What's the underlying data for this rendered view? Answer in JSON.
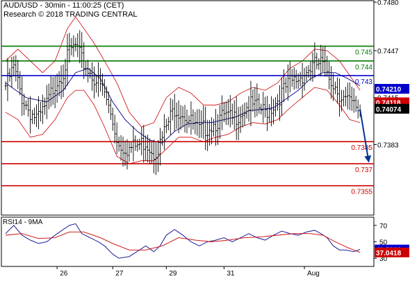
{
  "header": {
    "title": "AUD/USD - 30min - 11:00:25 (CET)",
    "subtitle": "Research © 2018 TRADING CENTRAL"
  },
  "chart_data": [
    {
      "type": "candlestick",
      "title": "AUD/USD - 30min - 11:00:25 (CET)",
      "ylim": [
        0.7335,
        0.7481
      ],
      "y_ticks": [
        0.748,
        0.7447,
        0.7415,
        0.7383
      ],
      "x_tick_labels": [
        "26",
        "27",
        "29",
        "31",
        "Aug"
      ],
      "grid": false,
      "approx_price_path": [
        [
          0,
          0.7423
        ],
        [
          4,
          0.7435
        ],
        [
          8,
          0.7415
        ],
        [
          12,
          0.7405
        ],
        [
          16,
          0.74
        ],
        [
          20,
          0.741
        ],
        [
          24,
          0.7425
        ],
        [
          28,
          0.7433
        ],
        [
          31,
          0.7446
        ],
        [
          34,
          0.745
        ],
        [
          37,
          0.744
        ],
        [
          41,
          0.7432
        ],
        [
          45,
          0.7425
        ],
        [
          48,
          0.7418
        ],
        [
          52,
          0.7398
        ],
        [
          55,
          0.7383
        ],
        [
          60,
          0.738
        ],
        [
          65,
          0.7383
        ],
        [
          68,
          0.7385
        ],
        [
          72,
          0.7378
        ],
        [
          75,
          0.7383
        ],
        [
          78,
          0.7395
        ],
        [
          82,
          0.7408
        ],
        [
          86,
          0.7405
        ],
        [
          90,
          0.7398
        ],
        [
          94,
          0.7392
        ],
        [
          98,
          0.7395
        ],
        [
          102,
          0.7398
        ],
        [
          106,
          0.7402
        ],
        [
          110,
          0.74
        ],
        [
          114,
          0.7405
        ],
        [
          118,
          0.741
        ],
        [
          122,
          0.7408
        ],
        [
          126,
          0.7405
        ],
        [
          130,
          0.741
        ],
        [
          134,
          0.7418
        ],
        [
          138,
          0.7425
        ],
        [
          142,
          0.7428
        ],
        [
          146,
          0.7433
        ],
        [
          150,
          0.7437
        ],
        [
          153,
          0.7438
        ],
        [
          156,
          0.7433
        ],
        [
          159,
          0.7425
        ],
        [
          162,
          0.7418
        ],
        [
          165,
          0.7413
        ],
        [
          169,
          0.7409
        ],
        [
          172,
          0.7407
        ]
      ],
      "bollinger_bands": {
        "upper": [
          [
            0,
            0.744
          ],
          [
            6,
            0.7448
          ],
          [
            12,
            0.744
          ],
          [
            18,
            0.7432
          ],
          [
            24,
            0.744
          ],
          [
            30,
            0.7462
          ],
          [
            34,
            0.747
          ],
          [
            38,
            0.7462
          ],
          [
            43,
            0.7452
          ],
          [
            48,
            0.744
          ],
          [
            54,
            0.7425
          ],
          [
            60,
            0.7405
          ],
          [
            66,
            0.7395
          ],
          [
            72,
            0.7398
          ],
          [
            78,
            0.7415
          ],
          [
            84,
            0.7422
          ],
          [
            90,
            0.7418
          ],
          [
            96,
            0.741
          ],
          [
            102,
            0.741
          ],
          [
            108,
            0.7412
          ],
          [
            114,
            0.7418
          ],
          [
            120,
            0.7422
          ],
          [
            126,
            0.742
          ],
          [
            132,
            0.7425
          ],
          [
            138,
            0.7435
          ],
          [
            144,
            0.744
          ],
          [
            150,
            0.7448
          ],
          [
            156,
            0.7447
          ],
          [
            162,
            0.744
          ],
          [
            167,
            0.743
          ],
          [
            172,
            0.742
          ]
        ],
        "lower": [
          [
            0,
            0.7405
          ],
          [
            6,
            0.74
          ],
          [
            12,
            0.7388
          ],
          [
            18,
            0.739
          ],
          [
            24,
            0.74
          ],
          [
            30,
            0.7415
          ],
          [
            34,
            0.742
          ],
          [
            38,
            0.742
          ],
          [
            43,
            0.741
          ],
          [
            48,
            0.7395
          ],
          [
            54,
            0.7375
          ],
          [
            60,
            0.737
          ],
          [
            66,
            0.7372
          ],
          [
            72,
            0.7372
          ],
          [
            78,
            0.738
          ],
          [
            84,
            0.7388
          ],
          [
            90,
            0.7388
          ],
          [
            96,
            0.7385
          ],
          [
            102,
            0.7388
          ],
          [
            108,
            0.739
          ],
          [
            114,
            0.7395
          ],
          [
            120,
            0.7398
          ],
          [
            126,
            0.7397
          ],
          [
            132,
            0.74
          ],
          [
            138,
            0.7408
          ],
          [
            144,
            0.7415
          ],
          [
            150,
            0.7422
          ],
          [
            156,
            0.742
          ],
          [
            162,
            0.741
          ],
          [
            167,
            0.74
          ],
          [
            172,
            0.7398
          ]
        ]
      },
      "moving_average": [
        [
          0,
          0.7425
        ],
        [
          10,
          0.7415
        ],
        [
          20,
          0.7412
        ],
        [
          28,
          0.742
        ],
        [
          34,
          0.7432
        ],
        [
          40,
          0.7435
        ],
        [
          46,
          0.7428
        ],
        [
          52,
          0.7412
        ],
        [
          58,
          0.74
        ],
        [
          64,
          0.7392
        ],
        [
          70,
          0.7386
        ],
        [
          76,
          0.7384
        ],
        [
          82,
          0.7392
        ],
        [
          88,
          0.7397
        ],
        [
          94,
          0.7398
        ],
        [
          100,
          0.7398
        ],
        [
          106,
          0.74
        ],
        [
          112,
          0.7402
        ],
        [
          118,
          0.7406
        ],
        [
          124,
          0.7407
        ],
        [
          130,
          0.7408
        ],
        [
          136,
          0.7414
        ],
        [
          142,
          0.742
        ],
        [
          148,
          0.7428
        ],
        [
          154,
          0.7432
        ],
        [
          160,
          0.7432
        ],
        [
          166,
          0.7428
        ],
        [
          172,
          0.7423
        ]
      ],
      "horizontal_levels": [
        {
          "value": 0.745,
          "label": "0.745",
          "color": "#007700"
        },
        {
          "value": 0.744,
          "label": "0.744",
          "color": "#007700"
        },
        {
          "value": 0.743,
          "label": "0.743",
          "color": "#0000cc"
        },
        {
          "value": 0.7385,
          "label": "0.7385",
          "color": "#cc0000"
        },
        {
          "value": 0.737,
          "label": "0.737",
          "color": "#cc0000"
        },
        {
          "value": 0.7355,
          "label": "0.7355",
          "color": "#cc0000"
        }
      ],
      "price_badges": [
        {
          "value": 0.7421,
          "label": "0.74210",
          "color": "#0000cc"
        },
        {
          "value": 0.74118,
          "label": "0.74118",
          "color": "#cc0000"
        },
        {
          "value": 0.74074,
          "label": "0.74074",
          "color": "#000000"
        }
      ],
      "forecast_arrow": {
        "from": [
          172,
          0.7407
        ],
        "to": [
          176,
          0.7373
        ],
        "color": "#003399"
      }
    },
    {
      "type": "line",
      "title": "RSI14 - 9MA",
      "ylim": [
        20,
        80
      ],
      "y_ticks": [
        70,
        50,
        30
      ],
      "series": [
        {
          "color": "#000088",
          "values": [
            [
              0,
              60
            ],
            [
              4,
              70
            ],
            [
              8,
              58
            ],
            [
              12,
              52
            ],
            [
              16,
              48
            ],
            [
              20,
              50
            ],
            [
              24,
              58
            ],
            [
              28,
              65
            ],
            [
              31,
              70
            ],
            [
              34,
              72
            ],
            [
              37,
              60
            ],
            [
              41,
              55
            ],
            [
              45,
              50
            ],
            [
              48,
              45
            ],
            [
              52,
              35
            ],
            [
              55,
              30
            ],
            [
              60,
              32
            ],
            [
              65,
              40
            ],
            [
              68,
              45
            ],
            [
              72,
              38
            ],
            [
              75,
              45
            ],
            [
              78,
              58
            ],
            [
              82,
              65
            ],
            [
              86,
              58
            ],
            [
              90,
              50
            ],
            [
              94,
              45
            ],
            [
              98,
              50
            ],
            [
              102,
              52
            ],
            [
              106,
              55
            ],
            [
              110,
              50
            ],
            [
              114,
              55
            ],
            [
              118,
              60
            ],
            [
              122,
              55
            ],
            [
              126,
              52
            ],
            [
              130,
              58
            ],
            [
              134,
              63
            ],
            [
              138,
              60
            ],
            [
              142,
              58
            ],
            [
              146,
              62
            ],
            [
              150,
              64
            ],
            [
              153,
              60
            ],
            [
              156,
              55
            ],
            [
              159,
              45
            ],
            [
              162,
              40
            ],
            [
              165,
              40
            ],
            [
              169,
              38
            ],
            [
              172,
              40.59
            ]
          ]
        },
        {
          "color": "#cc0000",
          "values": [
            [
              0,
              58
            ],
            [
              8,
              60
            ],
            [
              16,
              54
            ],
            [
              24,
              55
            ],
            [
              31,
              62
            ],
            [
              38,
              62
            ],
            [
              46,
              55
            ],
            [
              52,
              48
            ],
            [
              60,
              40
            ],
            [
              68,
              40
            ],
            [
              76,
              45
            ],
            [
              84,
              55
            ],
            [
              92,
              52
            ],
            [
              100,
              50
            ],
            [
              108,
              52
            ],
            [
              116,
              55
            ],
            [
              124,
              56
            ],
            [
              132,
              58
            ],
            [
              140,
              60
            ],
            [
              148,
              60
            ],
            [
              154,
              58
            ],
            [
              160,
              50
            ],
            [
              166,
              43
            ],
            [
              172,
              37.04
            ]
          ]
        }
      ],
      "price_badges": [
        {
          "value": 40.5868,
          "label": "40.5868",
          "color": "#0000cc"
        },
        {
          "value": 37.0418,
          "label": "37.0418",
          "color": "#cc0000"
        }
      ]
    }
  ]
}
